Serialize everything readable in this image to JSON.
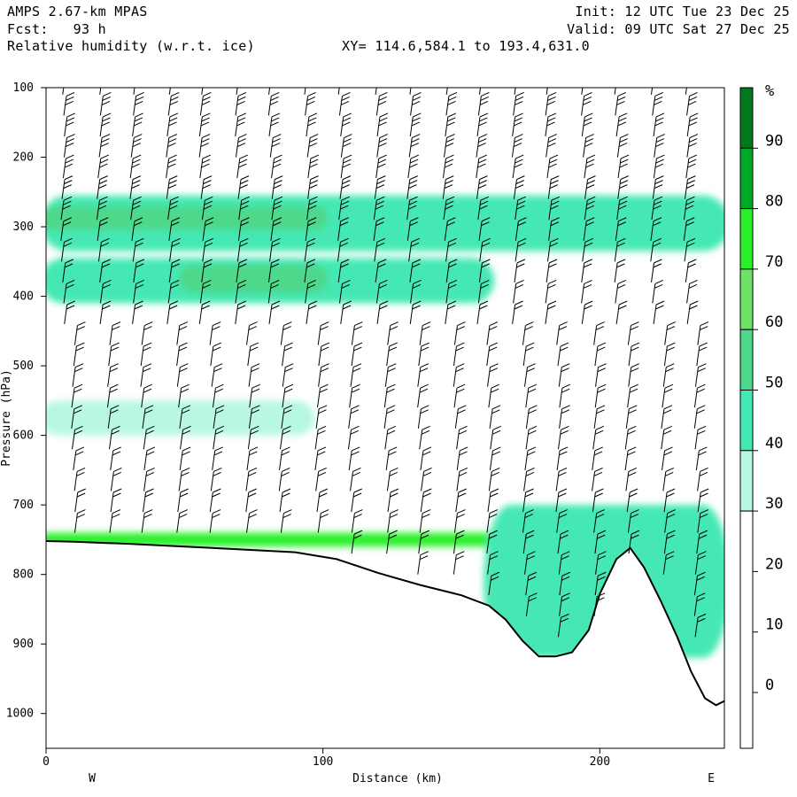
{
  "header": {
    "model": "AMPS 2.67-km MPAS",
    "forecast": "Fcst:   93 h",
    "field": "Relative humidity (w.r.t. ice)",
    "init": "Init: 12 UTC Tue 23 Dec 25",
    "valid": "Valid: 09 UTC Sat 27 Dec 25",
    "xy": "XY= 114.6,584.1 to 193.4,631.0"
  },
  "chart_data": {
    "type": "cross-section",
    "title": "Relative humidity (w.r.t. ice)",
    "xlabel": "Distance (km)",
    "ylabel": "Pressure (hPa)",
    "xlim": [
      0,
      245
    ],
    "ylim": [
      1050,
      100
    ],
    "x_ticks": [
      0,
      100,
      200
    ],
    "y_ticks": [
      100,
      200,
      300,
      400,
      500,
      600,
      700,
      800,
      900,
      1000
    ],
    "x_end_labels": {
      "left": "W",
      "right": "E"
    },
    "colorbar": {
      "unit": "%",
      "labels": [
        90,
        80,
        70,
        60,
        50,
        40,
        30,
        20,
        10,
        0
      ],
      "bins": [
        {
          "range": "90-100",
          "color": "#00781c"
        },
        {
          "range": "80-90",
          "color": "#00a828"
        },
        {
          "range": "70-80",
          "color": "#2af02a"
        },
        {
          "range": "60-70",
          "color": "#6ee266"
        },
        {
          "range": "50-60",
          "color": "#4ed88a"
        },
        {
          "range": "40-50",
          "color": "#44e8b4"
        },
        {
          "range": "30-40",
          "color": "#b8f8e0"
        },
        {
          "range": "<30",
          "color": "#ffffff"
        }
      ]
    },
    "terrain": {
      "distance_km": [
        0,
        10,
        30,
        60,
        90,
        105,
        120,
        135,
        150,
        160,
        166,
        172,
        178,
        184,
        190,
        196,
        200,
        206,
        211,
        216,
        222,
        228,
        233,
        238,
        242,
        245
      ],
      "surface_pressure_hpa": [
        752,
        753,
        756,
        762,
        768,
        778,
        798,
        815,
        830,
        845,
        865,
        895,
        918,
        918,
        912,
        880,
        828,
        778,
        762,
        790,
        838,
        890,
        940,
        978,
        988,
        982
      ]
    },
    "humidity_bands": [
      {
        "name": "upper moist layer",
        "p_top": 255,
        "p_bottom": 335,
        "x0": 0,
        "x1": 245,
        "rh": 40
      },
      {
        "name": "upper core",
        "p_top": 270,
        "p_bottom": 305,
        "x0": 0,
        "x1": 100,
        "rh": 50
      },
      {
        "name": "mid moist layer",
        "p_top": 345,
        "p_bottom": 410,
        "x0": 0,
        "x1": 160,
        "rh": 40
      },
      {
        "name": "mid core",
        "p_top": 355,
        "p_bottom": 395,
        "x0": 50,
        "x1": 100,
        "rh": 50
      },
      {
        "name": "thin layer",
        "p_top": 550,
        "p_bottom": 600,
        "x0": 0,
        "x1": 95,
        "rh": 30
      },
      {
        "name": "near-surface layer",
        "p_top": 740,
        "p_bottom": 760,
        "x0": 0,
        "x1": 160,
        "rh": 70
      },
      {
        "name": "valley moisture",
        "p_top": 700,
        "p_bottom": 920,
        "x0": 160,
        "x1": 245,
        "rh": 40
      }
    ],
    "barb_columns_km": [
      6,
      19,
      31,
      44,
      56,
      69,
      81,
      94,
      106,
      119,
      131,
      144,
      156,
      169,
      181,
      194,
      206,
      219,
      231
    ],
    "barb_levels_hpa": [
      110,
      140,
      170,
      200,
      230,
      260,
      290,
      320,
      350,
      380,
      410,
      440,
      470,
      500,
      530,
      560,
      590,
      620,
      650,
      680,
      710,
      740,
      770,
      800,
      830,
      860,
      890,
      920,
      950
    ]
  }
}
